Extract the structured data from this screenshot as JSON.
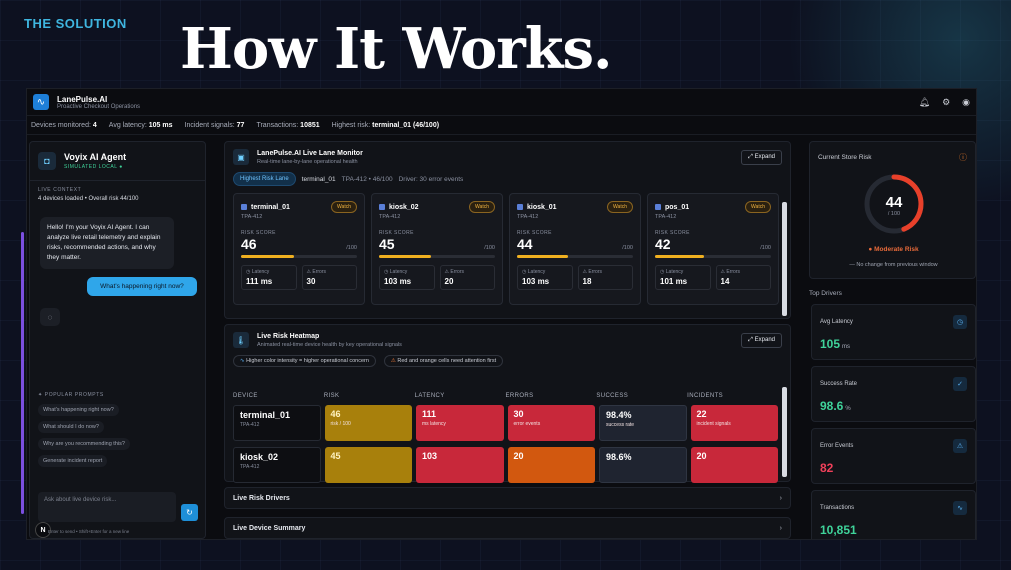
{
  "slide": {
    "kicker": "THE SOLUTION",
    "headline": "How It Works."
  },
  "app": {
    "title": "LanePulse.AI",
    "subtitle": "Proactive Checkout Operations",
    "icons": [
      "bell-icon",
      "gear-icon",
      "user-icon"
    ]
  },
  "stats": [
    {
      "label": "Devices monitored:",
      "value": "4"
    },
    {
      "label": "Avg latency:",
      "value": "105 ms"
    },
    {
      "label": "Incident signals:",
      "value": "77"
    },
    {
      "label": "Transactions:",
      "value": "10851"
    },
    {
      "label": "Highest risk:",
      "value": "terminal_01 (46/100)"
    }
  ],
  "agent": {
    "name": "Voyix AI Agent",
    "status": "SIMULATED LOCAL ●",
    "context_label": "LIVE CONTEXT",
    "context_text": "4 devices loaded • Overall risk 44/100",
    "ai_message": "Hello! I'm your Voyix AI Agent. I can analyze live retail telemetry and explain risks, recommended actions, and why they matter.",
    "user_message": "What's happening right now?",
    "prompts_label": "POPULAR PROMPTS",
    "prompts": [
      "What's happening right now?",
      "What should I do now?",
      "Why are you recommending this?",
      "Generate incident report"
    ],
    "input_placeholder": "Ask about live device risk...",
    "hint": "Enter to send • Shift+Enter for a new line",
    "badge": "N"
  },
  "monitor": {
    "title": "LanePulse.AI Live Lane Monitor",
    "subtitle": "Real-time lane-by-lane operational health",
    "expand": "Expand",
    "chip": "Highest Risk Lane",
    "lane": "terminal_01",
    "lane_detail": "TPA-412 • 46/100",
    "driver": "Driver: 30 error events",
    "risk_label": "RISK SCORE",
    "out_of": "/100",
    "latency_label": "Latency",
    "errors_label": "Errors",
    "devices": [
      {
        "name": "terminal_01",
        "store": "TPA-412",
        "tag": "Watch",
        "score": "46",
        "risk": 0.46,
        "latency": "111 ms",
        "errors": "30"
      },
      {
        "name": "kiosk_02",
        "store": "TPA-412",
        "tag": "Watch",
        "score": "45",
        "risk": 0.45,
        "latency": "103 ms",
        "errors": "20"
      },
      {
        "name": "kiosk_01",
        "store": "TPA-412",
        "tag": "Watch",
        "score": "44",
        "risk": 0.44,
        "latency": "103 ms",
        "errors": "18"
      },
      {
        "name": "pos_01",
        "store": "TPA-412",
        "tag": "Watch",
        "score": "42",
        "risk": 0.42,
        "latency": "101 ms",
        "errors": "14"
      }
    ]
  },
  "heatmap": {
    "title": "Live Risk Heatmap",
    "subtitle": "Animated real-time device health by key operational signals",
    "expand": "Expand",
    "legend": [
      "Higher color intensity = higher operational concern",
      "Red and orange cells need attention first"
    ],
    "columns": [
      "DEVICE",
      "RISK",
      "LATENCY",
      "ERRORS",
      "SUCCESS",
      "INCIDENTS"
    ],
    "rows": [
      {
        "device": "terminal_01",
        "store": "TPA-412",
        "cells": [
          {
            "value": "46",
            "sub": "risk / 100",
            "tone": "yellow"
          },
          {
            "value": "111",
            "sub": "ms latency",
            "tone": "red"
          },
          {
            "value": "30",
            "sub": "error events",
            "tone": "red"
          },
          {
            "value": "98.4%",
            "sub": "success rate",
            "tone": "dark"
          },
          {
            "value": "22",
            "sub": "incident signals",
            "tone": "red"
          }
        ]
      },
      {
        "device": "kiosk_02",
        "store": "TPA-412",
        "cells": [
          {
            "value": "45",
            "sub": "",
            "tone": "yellow"
          },
          {
            "value": "103",
            "sub": "",
            "tone": "red"
          },
          {
            "value": "20",
            "sub": "",
            "tone": "orange"
          },
          {
            "value": "98.6%",
            "sub": "",
            "tone": "dark"
          },
          {
            "value": "20",
            "sub": "",
            "tone": "red"
          }
        ]
      }
    ]
  },
  "accordions": [
    "Live Risk Drivers",
    "Live Device Summary"
  ],
  "store_risk": {
    "title": "Current Store Risk",
    "value": "44",
    "out_of": "/ 100",
    "risk": 0.44,
    "level": "● Moderate Risk",
    "change": "— No change from previous window"
  },
  "drivers_label": "Top Drivers",
  "drivers": [
    {
      "label": "Avg Latency",
      "value": "105",
      "unit": "ms",
      "icon": "clock-icon",
      "tone": "green"
    },
    {
      "label": "Success Rate",
      "value": "98.6",
      "unit": "%",
      "icon": "check-circle-icon",
      "tone": "green"
    },
    {
      "label": "Error Events",
      "value": "82",
      "unit": "",
      "icon": "warning-icon",
      "tone": "red"
    },
    {
      "label": "Transactions",
      "value": "10,851",
      "unit": "",
      "icon": "activity-icon",
      "tone": "green"
    }
  ],
  "colors": {
    "accent": "#2fa6ea",
    "watch": "#f0b340",
    "risk_red": "#c8283a",
    "risk_yellow": "#a8800c",
    "gauge": "#e8402a"
  }
}
